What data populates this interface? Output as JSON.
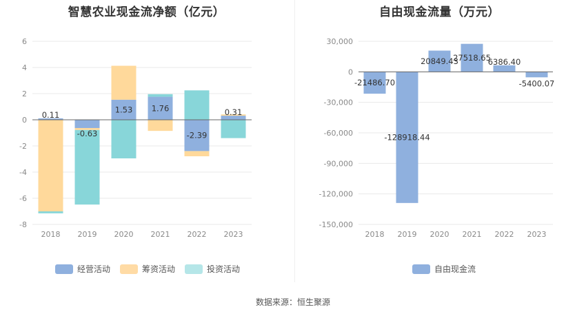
{
  "titles": {
    "left": "智慧农业现金流净额（亿元）",
    "right": "自由现金流量（万元）"
  },
  "colors": {
    "operating": "#8fb0de",
    "financing": "#ffd99b",
    "investing": "#88d6d9",
    "grid": "#e8e8e8",
    "axis": "#666666"
  },
  "legend_left": [
    {
      "name": "经营活动",
      "color": "#8fb0de"
    },
    {
      "name": "筹资活动",
      "color": "#ffdba5"
    },
    {
      "name": "投资活动",
      "color": "#b5e6e8"
    }
  ],
  "legend_right": [
    {
      "name": "自由现金流",
      "color": "#8fb0de"
    }
  ],
  "source": "数据来源：恒生聚源",
  "chart_data": [
    {
      "type": "bar",
      "stacked": true,
      "title": "智慧农业现金流净额（亿元）",
      "categories": [
        "2018",
        "2019",
        "2020",
        "2021",
        "2022",
        "2023"
      ],
      "ylim": [
        -8,
        6
      ],
      "yticks": [
        6,
        4,
        2,
        0,
        -2,
        -4,
        -6,
        -8
      ],
      "series": [
        {
          "name": "经营活动",
          "values": [
            0.11,
            -0.63,
            1.53,
            1.76,
            -2.39,
            0.31
          ],
          "labels": [
            "0.11",
            "-0.63",
            "1.53",
            "1.76",
            "-2.39",
            "0.31"
          ]
        },
        {
          "name": "筹资活动",
          "values": [
            -7.0,
            -0.15,
            2.6,
            -0.85,
            -0.4,
            0.1
          ]
        },
        {
          "name": "投资活动",
          "values": [
            -0.15,
            -5.7,
            -2.95,
            0.2,
            2.25,
            -1.4
          ]
        }
      ]
    },
    {
      "type": "bar",
      "waterfall": true,
      "title": "自由现金流量（万元）",
      "categories": [
        "2018",
        "2019",
        "2020",
        "2021",
        "2022",
        "2023"
      ],
      "ylim": [
        -150000,
        30000
      ],
      "yticks": [
        30000,
        0,
        -30000,
        -60000,
        -90000,
        -120000,
        -150000
      ],
      "ytick_labels": [
        "30,000",
        "0",
        "-30,000",
        "-60,000",
        "-90,000",
        "-120,000",
        "-150,000"
      ],
      "series": [
        {
          "name": "自由现金流",
          "values": [
            -21486.7,
            -128918.44,
            20849.43,
            27518.65,
            6386.4,
            -5400.07
          ],
          "labels": [
            "-21486.70",
            "-128918.44",
            "20849.43",
            "27518.65",
            "6386.40",
            "-5400.07"
          ]
        }
      ]
    }
  ]
}
